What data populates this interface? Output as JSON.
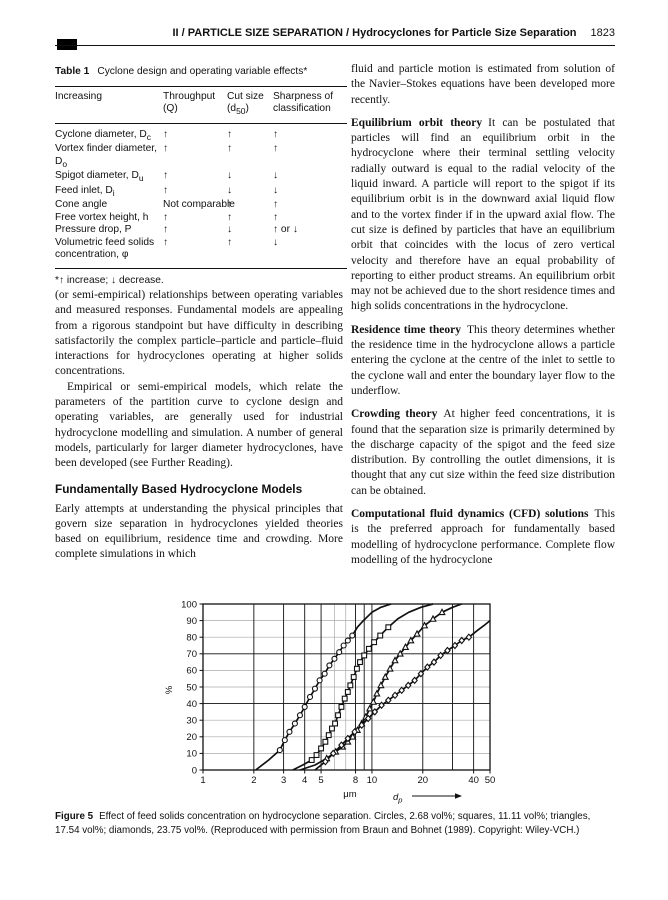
{
  "header": {
    "title": "II / PARTICLE SIZE SEPARATION / Hydrocyclones for Particle Size Separation",
    "page": "1823"
  },
  "table": {
    "label": "Table 1",
    "caption": "Cyclone design and operating variable effects*",
    "columns": [
      "Increasing",
      "Throughput (Q)",
      "Cut size (d_50)",
      "Sharpness of classification"
    ],
    "rows": [
      {
        "name": "Cyclone diameter, D_c",
        "throughput": "↑",
        "cut": "↑",
        "sharpness": "↑"
      },
      {
        "name": "Vortex finder diameter, D_o",
        "throughput": "↑",
        "cut": "↑",
        "sharpness": "↑"
      },
      {
        "name": "Spigot diameter, D_u",
        "throughput": "↑",
        "cut": "↓",
        "sharpness": "↓"
      },
      {
        "name": "Feed inlet, D_i",
        "throughput": "↑",
        "cut": "↓",
        "sharpness": "↓"
      },
      {
        "name": "Cone angle",
        "throughput": "Not comparable",
        "cut": "↑",
        "sharpness": "↑"
      },
      {
        "name": "Free vortex height, h",
        "throughput": "↑",
        "cut": "↑",
        "sharpness": "↑"
      },
      {
        "name": "Pressure drop, P",
        "throughput": "↑",
        "cut": "↓",
        "sharpness": "↑ or ↓"
      },
      {
        "name": "Volumetric feed solids concentration, φ",
        "throughput": "↑",
        "cut": "↑",
        "sharpness": "↓"
      }
    ],
    "footnote": "*↑ increase; ↓ decrease."
  },
  "left_column": {
    "para1": "(or semi-empirical) relationships between operating variables and measured responses. Fundamental models are appealing from a rigorous standpoint but have difficulty in describing satisfactorily the complex particle–particle and particle–fluid interactions for hydrocyclones operating at higher solids concentrations.",
    "para2": "Empirical or semi-empirical models, which relate the parameters of the partition curve to cyclone design and operating variables, are generally used for industrial hydrocyclone modelling and simulation. A number of general models, particularly for larger diameter hydrocyclones, have been developed (see Further Reading).",
    "heading": "Fundamentally Based Hydrocyclone Models",
    "para3": "Early attempts at understanding the physical principles that govern size separation in hydrocyclones yielded theories based on equilibrium, residence time and crowding. More complete simulations in which"
  },
  "right_column": {
    "para1": "fluid and particle motion is estimated from solution of the Navier–Stokes equations have been developed more recently.",
    "sections": [
      {
        "lead": "Equilibrium orbit theory",
        "text": "It can be postulated that particles will find an equilibrium orbit in the hydrocyclone where their terminal settling velocity radially outward is equal to the radial velocity of the liquid inward. A particle will report to the spigot if its equilibrium orbit is in the downward axial liquid flow and to the vortex finder if in the upward axial flow. The cut size is defined by particles that have an equilibrium orbit that coincides with the locus of zero vertical velocity and therefore have an equal probability of reporting to either product streams. An equilibrium orbit may not be achieved due to the short residence times and high solids concentrations in the hydrocyclone."
      },
      {
        "lead": "Residence time theory",
        "text": "This theory determines whether the residence time in the hydrocyclone allows a particle entering the cyclone at the centre of the inlet to settle to the cyclone wall and enter the boundary layer flow to the underflow."
      },
      {
        "lead": "Crowding theory",
        "text": "At higher feed concentrations, it is found that the separation size is primarily determined by the discharge capacity of the spigot and the feed size distribution. By controlling the outlet dimensions, it is thought that any cut size within the feed size distribution can be obtained."
      },
      {
        "lead": "Computational fluid dynamics (CFD) solutions",
        "text": "This is the preferred approach for fundamentally based modelling of hydrocyclone performance. Complete flow modelling of the hydrocyclone"
      }
    ]
  },
  "figure": {
    "label": "Figure 5",
    "caption": "Effect of feed solids concentration on hydrocyclone separation. Circles, 2.68 vol%; squares, 11.11 vol%; triangles, 17.54 vol%; diamonds, 23.75 vol%. (Reproduced with permission from Braun and Bohnet (1989). Copyright: Wiley-VCH.)"
  },
  "chart_data": {
    "type": "line",
    "title": "Effect of feed solids concentration on hydrocyclone separation",
    "xlabel_unit": "μm",
    "xlabel_symbol": "d_p",
    "ylabel": "%",
    "xscale": "log",
    "xlim": [
      1,
      50
    ],
    "ylim": [
      0,
      100
    ],
    "x_ticks": [
      1,
      2,
      3,
      4,
      5,
      8,
      10,
      20,
      40,
      50
    ],
    "y_ticks": [
      0,
      10,
      20,
      30,
      40,
      50,
      60,
      70,
      80,
      90,
      100
    ],
    "grid_x_dark": [
      2,
      3,
      4,
      5,
      8,
      9,
      10,
      20,
      30,
      40
    ],
    "grid_x_light": [
      6,
      7
    ],
    "grid_y_dark": [
      40,
      70
    ],
    "grid_y_light": [
      10,
      20,
      30,
      50,
      60,
      80,
      90
    ],
    "line_color": "#111111",
    "light_grid_color": "#aaaaaa",
    "legend_position": "none",
    "series": [
      {
        "name": "2.68 vol%",
        "marker": "circle",
        "marker_range": [
          10,
          81
        ],
        "points": [
          [
            2.05,
            0
          ],
          [
            2.45,
            6
          ],
          [
            2.85,
            12
          ],
          [
            3.05,
            18
          ],
          [
            3.25,
            23
          ],
          [
            3.5,
            28
          ],
          [
            3.75,
            33
          ],
          [
            4.0,
            38
          ],
          [
            4.3,
            44
          ],
          [
            4.6,
            49
          ],
          [
            4.9,
            54
          ],
          [
            5.25,
            58
          ],
          [
            5.6,
            63
          ],
          [
            6.0,
            67
          ],
          [
            6.4,
            71
          ],
          [
            6.8,
            75
          ],
          [
            7.2,
            78
          ],
          [
            7.65,
            81
          ],
          [
            8.2,
            86
          ],
          [
            8.9,
            90
          ],
          [
            10.0,
            95
          ],
          [
            11.3,
            98
          ],
          [
            13.0,
            100
          ]
        ]
      },
      {
        "name": "11.11 vol%",
        "marker": "square",
        "marker_range": [
          5,
          86
        ],
        "points": [
          [
            3.4,
            0
          ],
          [
            3.9,
            3
          ],
          [
            4.4,
            6
          ],
          [
            4.7,
            9
          ],
          [
            5.0,
            13
          ],
          [
            5.3,
            17
          ],
          [
            5.55,
            21
          ],
          [
            5.8,
            25
          ],
          [
            6.05,
            28
          ],
          [
            6.3,
            33
          ],
          [
            6.6,
            38
          ],
          [
            6.9,
            43
          ],
          [
            7.2,
            47
          ],
          [
            7.45,
            51
          ],
          [
            7.8,
            56
          ],
          [
            8.15,
            61
          ],
          [
            8.5,
            65
          ],
          [
            9.0,
            69
          ],
          [
            9.6,
            73
          ],
          [
            10.3,
            77
          ],
          [
            11.2,
            81
          ],
          [
            12.5,
            86
          ],
          [
            14.2,
            91
          ],
          [
            16.5,
            95
          ],
          [
            19.5,
            98
          ],
          [
            23.0,
            100
          ]
        ]
      },
      {
        "name": "17.54 vol%",
        "marker": "triangle",
        "marker_range": [
          6,
          95
        ],
        "points": [
          [
            3.75,
            0
          ],
          [
            4.6,
            3
          ],
          [
            5.4,
            7
          ],
          [
            6.1,
            11
          ],
          [
            6.7,
            14
          ],
          [
            7.2,
            17
          ],
          [
            7.7,
            20
          ],
          [
            8.2,
            24
          ],
          [
            8.7,
            28
          ],
          [
            9.2,
            32
          ],
          [
            9.7,
            37
          ],
          [
            10.2,
            41
          ],
          [
            10.7,
            46
          ],
          [
            11.3,
            51
          ],
          [
            12.0,
            56
          ],
          [
            12.8,
            61
          ],
          [
            13.7,
            66
          ],
          [
            14.7,
            70
          ],
          [
            15.8,
            74
          ],
          [
            17.0,
            78
          ],
          [
            18.5,
            82
          ],
          [
            20.5,
            87
          ],
          [
            23.0,
            91
          ],
          [
            26.0,
            95
          ],
          [
            30.0,
            98
          ],
          [
            34.0,
            100
          ]
        ]
      },
      {
        "name": "23.75 vol%",
        "marker": "diamond",
        "marker_range": [
          4,
          81
        ],
        "points": [
          [
            4.6,
            0
          ],
          [
            5.3,
            5
          ],
          [
            5.9,
            10
          ],
          [
            6.6,
            15
          ],
          [
            7.2,
            19
          ],
          [
            7.9,
            23
          ],
          [
            8.7,
            27
          ],
          [
            9.5,
            31
          ],
          [
            10.4,
            35
          ],
          [
            11.4,
            39
          ],
          [
            12.5,
            42
          ],
          [
            13.7,
            45
          ],
          [
            15.0,
            48
          ],
          [
            16.4,
            51
          ],
          [
            17.9,
            54
          ],
          [
            19.5,
            58
          ],
          [
            21.3,
            62
          ],
          [
            23.3,
            65
          ],
          [
            25.5,
            69
          ],
          [
            28.0,
            72
          ],
          [
            31.0,
            75
          ],
          [
            34.0,
            78
          ],
          [
            37.5,
            80
          ],
          [
            42.0,
            84
          ],
          [
            46.0,
            87
          ],
          [
            50.0,
            90
          ]
        ]
      }
    ]
  }
}
